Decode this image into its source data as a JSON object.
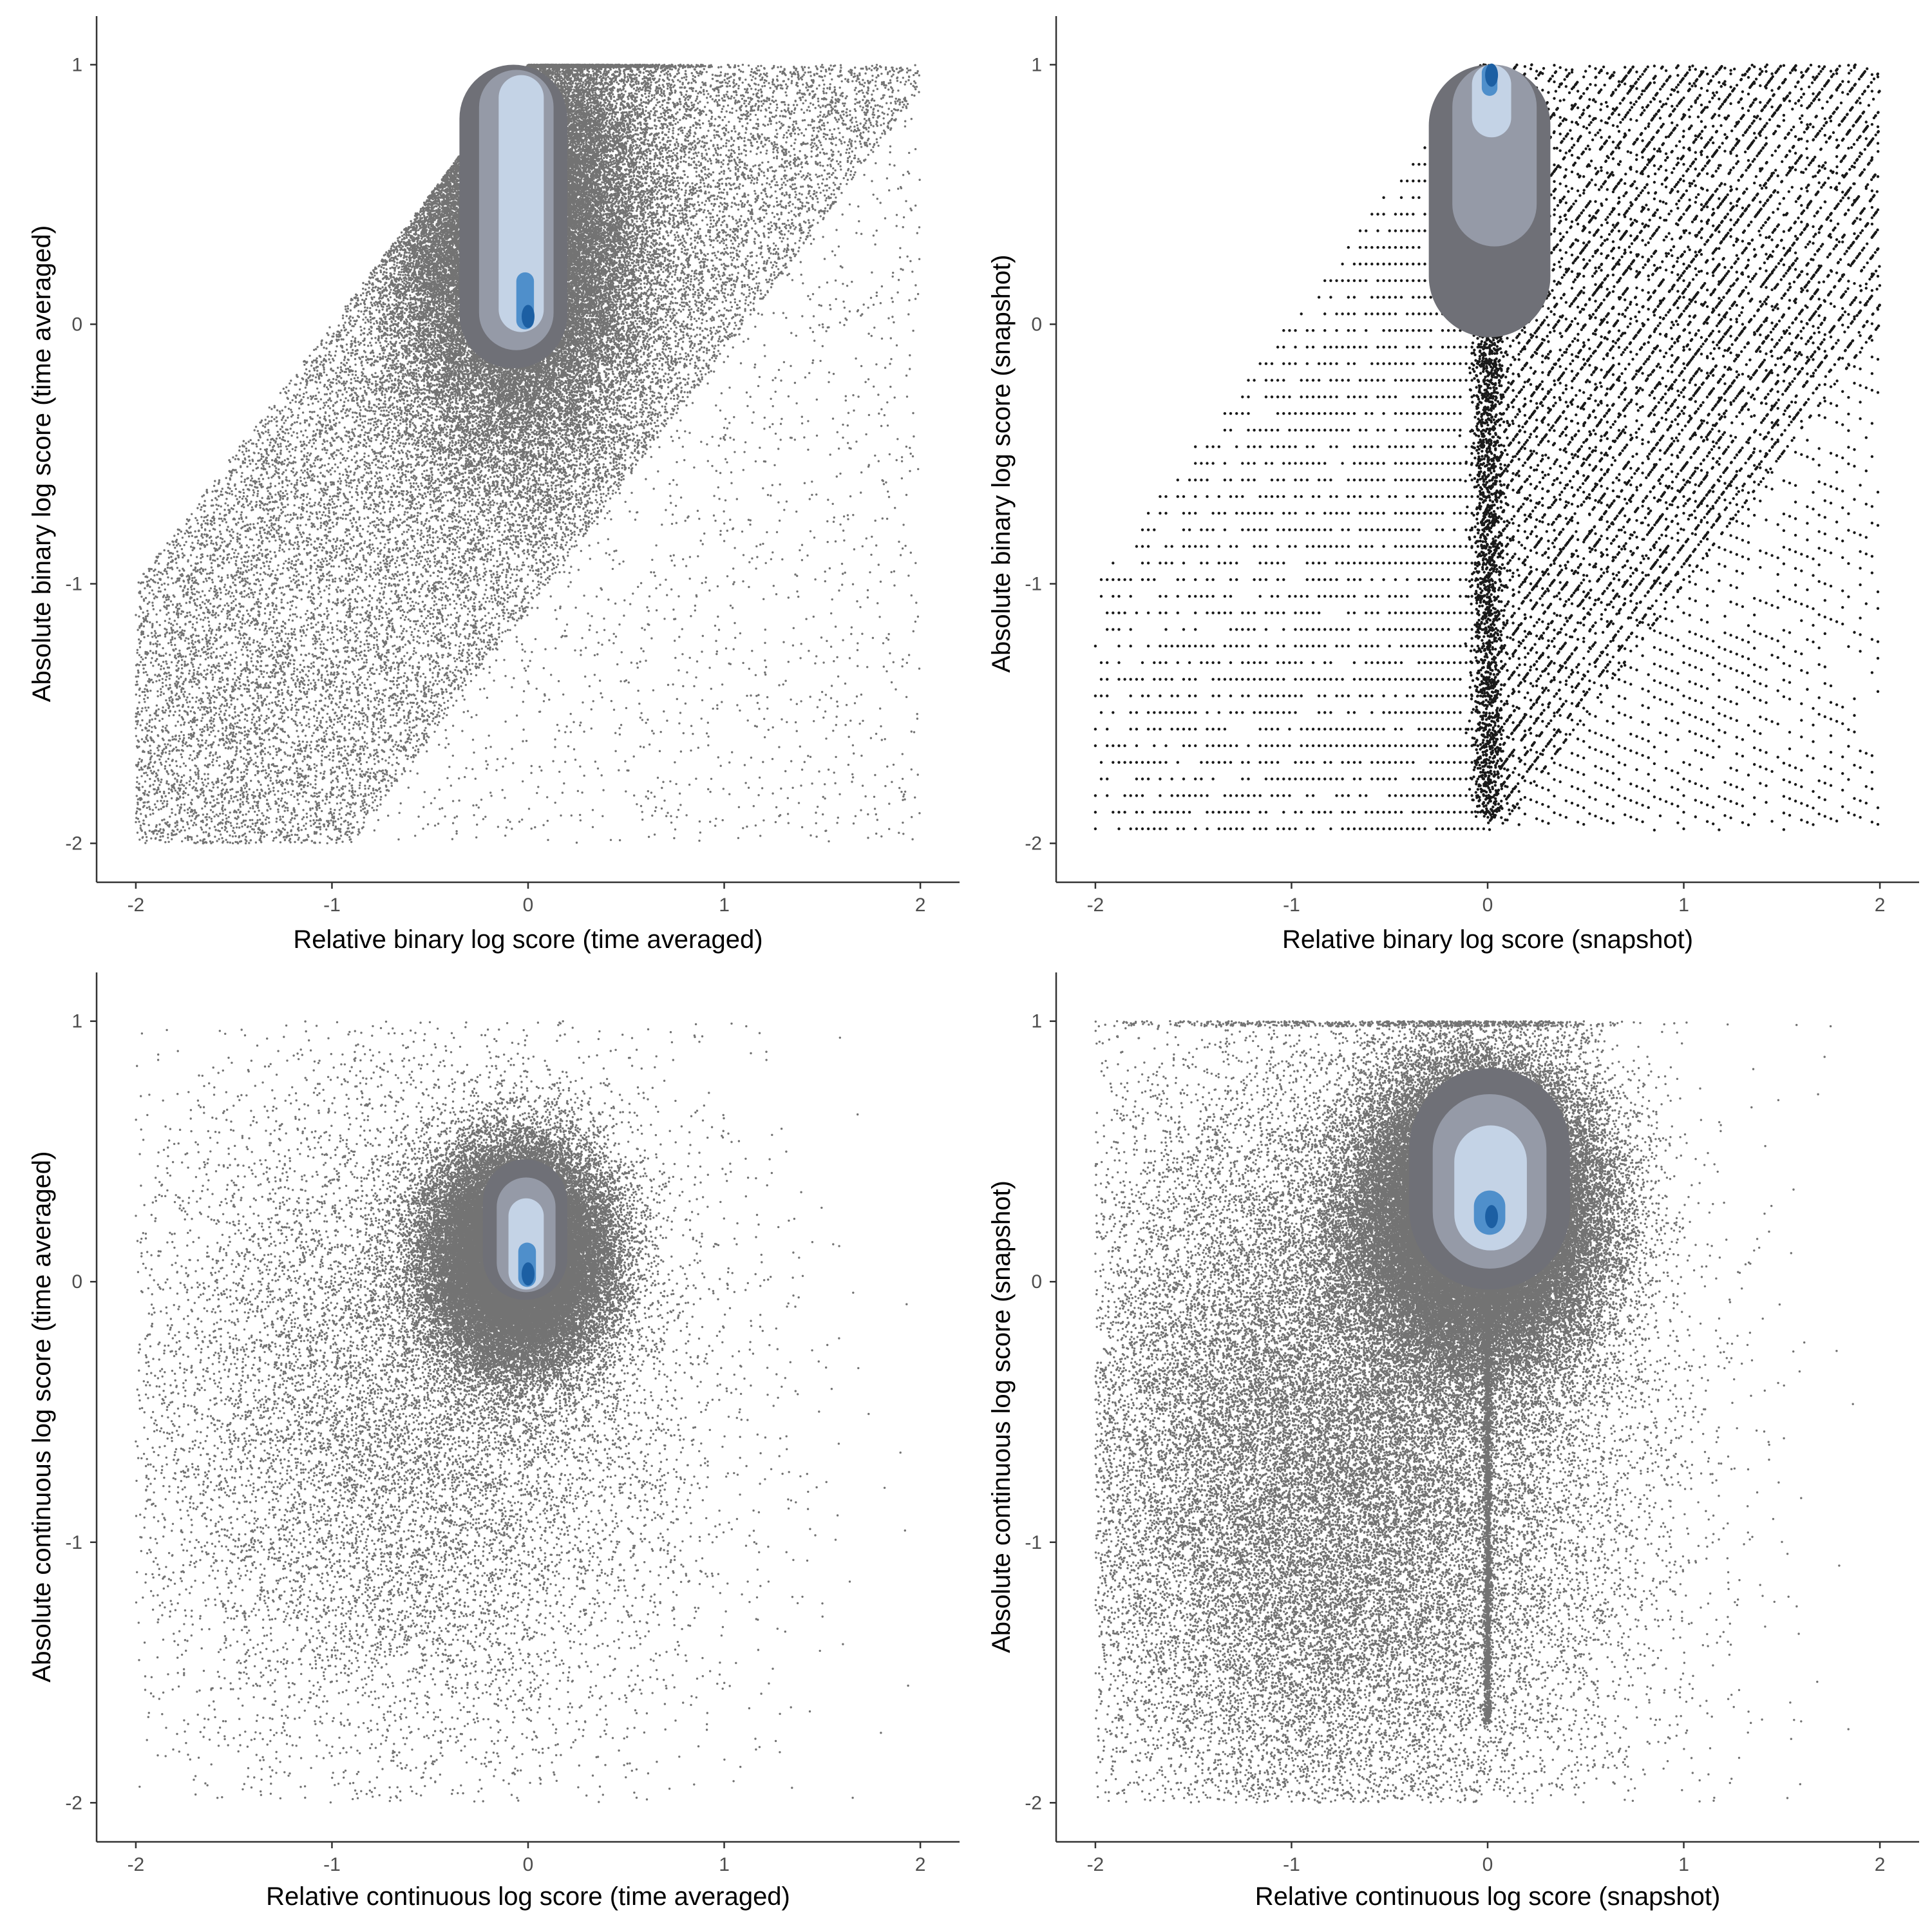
{
  "chart_data": [
    {
      "type": "scatter",
      "overlay": "2d-density-filled-contours",
      "xlabel": "Relative binary log score (time averaged)",
      "ylabel": "Absolute binary log score (time averaged)",
      "xlim": [
        -2.2,
        2.2
      ],
      "ylim": [
        -2.15,
        1.15
      ],
      "xticks": [
        "-2",
        "-1",
        "0",
        "1",
        "2"
      ],
      "yticks": [
        "-2",
        "-1",
        "0",
        "1"
      ],
      "grid": false,
      "point_cloud": {
        "pattern": "band",
        "points": 90000,
        "x_range": [
          -2,
          2
        ],
        "y_range": [
          -2,
          1
        ],
        "upper_bound": "y <= 1 and y <= x + 1",
        "lower_bound": "y >= x - 1.1",
        "dense_core": [
          -0.05,
          0.4
        ]
      },
      "density_contours": [
        {
          "level": 1,
          "x_range": [
            -0.35,
            0.2
          ],
          "y_range": [
            -0.17,
            1.0
          ],
          "mode": [
            0.0,
            0.03
          ]
        },
        {
          "level": 2,
          "x_range": [
            -0.25,
            0.13
          ],
          "y_range": [
            -0.1,
            0.98
          ],
          "mode": [
            0.0,
            0.03
          ]
        },
        {
          "level": 3,
          "x_range": [
            -0.15,
            0.08
          ],
          "y_range": [
            -0.03,
            0.96
          ],
          "mode": [
            0.0,
            0.03
          ]
        },
        {
          "level": 4,
          "x_range": [
            -0.06,
            0.03
          ],
          "y_range": [
            -0.02,
            0.2
          ],
          "mode": [
            0.0,
            0.03
          ]
        }
      ]
    },
    {
      "type": "scatter",
      "overlay": "2d-density-filled-contours",
      "xlabel": "Relative binary log score (snapshot)",
      "ylabel": "Absolute binary log score (snapshot)",
      "xlim": [
        -2.2,
        2.2
      ],
      "ylim": [
        -2.15,
        1.15
      ],
      "xticks": [
        "-2",
        "-1",
        "0",
        "1",
        "2"
      ],
      "yticks": [
        "-2",
        "-1",
        "0",
        "1"
      ],
      "grid": false,
      "point_cloud": {
        "pattern": "lattice",
        "points": 9000,
        "x_range": [
          -2,
          2
        ],
        "y_range": [
          -1.95,
          1
        ],
        "upper_bound": "y <= 1 and y <= x + 1",
        "dense_core": [
          0.0,
          0.6
        ]
      },
      "density_contours": [
        {
          "level": 1,
          "x_range": [
            -0.3,
            0.32
          ],
          "y_range": [
            -0.05,
            1.0
          ],
          "mode": [
            0.02,
            0.96
          ]
        },
        {
          "level": 2,
          "x_range": [
            -0.18,
            0.25
          ],
          "y_range": [
            0.3,
            1.0
          ],
          "mode": [
            0.02,
            0.96
          ]
        },
        {
          "level": 3,
          "x_range": [
            -0.08,
            0.12
          ],
          "y_range": [
            0.72,
            1.0
          ],
          "mode": [
            0.02,
            0.96
          ]
        },
        {
          "level": 4,
          "x_range": [
            -0.03,
            0.05
          ],
          "y_range": [
            0.88,
            1.0
          ],
          "mode": [
            0.02,
            0.96
          ]
        }
      ]
    },
    {
      "type": "scatter",
      "overlay": "2d-density-filled-contours",
      "xlabel": "Relative continuous log score (time averaged)",
      "ylabel": "Absolute continuous log score (time averaged)",
      "xlim": [
        -2.2,
        2.2
      ],
      "ylim": [
        -2.15,
        1.15
      ],
      "xticks": [
        "-2",
        "-1",
        "0",
        "1",
        "2"
      ],
      "yticks": [
        "-2",
        "-1",
        "0",
        "1"
      ],
      "grid": false,
      "point_cloud": {
        "pattern": "blob",
        "points": 60000,
        "x_range": [
          -2,
          2
        ],
        "y_range": [
          -2,
          1
        ],
        "dense_core": [
          -0.05,
          0.1
        ],
        "spread": [
          0.5,
          0.45
        ]
      },
      "density_contours": [
        {
          "level": 1,
          "x_range": [
            -0.23,
            0.2
          ],
          "y_range": [
            -0.07,
            0.47
          ],
          "mode": [
            0.0,
            0.03
          ]
        },
        {
          "level": 2,
          "x_range": [
            -0.16,
            0.14
          ],
          "y_range": [
            -0.04,
            0.4
          ],
          "mode": [
            0.0,
            0.03
          ]
        },
        {
          "level": 3,
          "x_range": [
            -0.1,
            0.08
          ],
          "y_range": [
            -0.03,
            0.32
          ],
          "mode": [
            0.0,
            0.03
          ]
        },
        {
          "level": 4,
          "x_range": [
            -0.05,
            0.04
          ],
          "y_range": [
            -0.02,
            0.15
          ],
          "mode": [
            0.0,
            0.03
          ]
        }
      ]
    },
    {
      "type": "scatter",
      "overlay": "2d-density-filled-contours",
      "xlabel": "Relative continuous log score (snapshot)",
      "ylabel": "Absolute continuous log score (snapshot)",
      "xlim": [
        -2.2,
        2.2
      ],
      "ylim": [
        -2.15,
        1.15
      ],
      "xticks": [
        "-2",
        "-1",
        "0",
        "1",
        "2"
      ],
      "yticks": [
        "-2",
        "-1",
        "0",
        "1"
      ],
      "grid": false,
      "point_cloud": {
        "pattern": "blob-capped",
        "points": 100000,
        "x_range": [
          -2,
          2
        ],
        "y_range": [
          -2,
          1
        ],
        "dense_core": [
          -0.05,
          0.25
        ],
        "spread": [
          0.55,
          0.5
        ]
      },
      "density_contours": [
        {
          "level": 1,
          "x_range": [
            -0.4,
            0.42
          ],
          "y_range": [
            -0.03,
            0.82
          ],
          "mode": [
            0.02,
            0.25
          ]
        },
        {
          "level": 2,
          "x_range": [
            -0.28,
            0.3
          ],
          "y_range": [
            0.05,
            0.72
          ],
          "mode": [
            0.02,
            0.25
          ]
        },
        {
          "level": 3,
          "x_range": [
            -0.17,
            0.2
          ],
          "y_range": [
            0.12,
            0.6
          ],
          "mode": [
            0.02,
            0.25
          ]
        },
        {
          "level": 4,
          "x_range": [
            -0.07,
            0.09
          ],
          "y_range": [
            0.18,
            0.35
          ],
          "mode": [
            0.02,
            0.25
          ]
        }
      ]
    }
  ],
  "style": {
    "point_color": "#000000",
    "axis_color": "#333333",
    "tick_label_color": "#4d4d4d",
    "contour_fill": [
      "#6f7077",
      "#959aa7",
      "#c4d3e6",
      "#4f8fcb"
    ],
    "contour_peak_color": "#1c5fa3"
  }
}
